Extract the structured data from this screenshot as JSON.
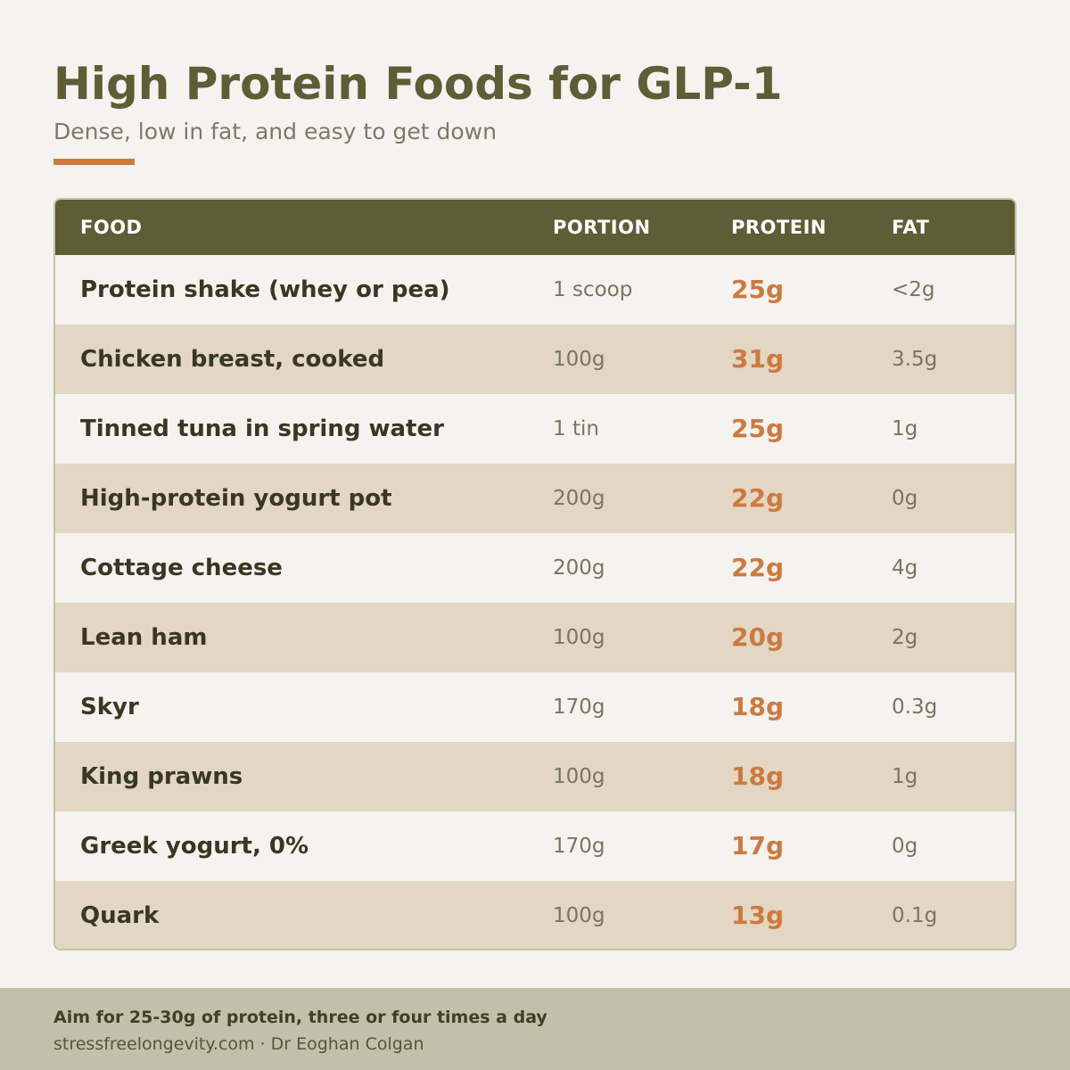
{
  "header": {
    "title": "High Protein Foods for GLP-1",
    "subtitle": "Dense, low in fat, and easy to get down"
  },
  "table": {
    "columns": {
      "food": "FOOD",
      "portion": "PORTION",
      "protein": "PROTEIN",
      "fat": "FAT"
    },
    "rows": [
      {
        "food": "Protein shake (whey or pea)",
        "portion": "1 scoop",
        "protein": "25g",
        "fat": "<2g"
      },
      {
        "food": "Chicken breast, cooked",
        "portion": "100g",
        "protein": "31g",
        "fat": "3.5g"
      },
      {
        "food": "Tinned tuna in spring water",
        "portion": "1 tin",
        "protein": "25g",
        "fat": "1g"
      },
      {
        "food": "High-protein yogurt pot",
        "portion": "200g",
        "protein": "22g",
        "fat": "0g"
      },
      {
        "food": "Cottage cheese",
        "portion": "200g",
        "protein": "22g",
        "fat": "4g"
      },
      {
        "food": "Lean ham",
        "portion": "100g",
        "protein": "20g",
        "fat": "2g"
      },
      {
        "food": "Skyr",
        "portion": "170g",
        "protein": "18g",
        "fat": "0.3g"
      },
      {
        "food": "King prawns",
        "portion": "100g",
        "protein": "18g",
        "fat": "1g"
      },
      {
        "food": "Greek yogurt, 0%",
        "portion": "170g",
        "protein": "17g",
        "fat": "0g"
      },
      {
        "food": "Quark",
        "portion": "100g",
        "protein": "13g",
        "fat": "0.1g"
      }
    ]
  },
  "footer": {
    "note": "Aim for 25-30g of protein, three or four times a day",
    "credit": "stressfreelongevity.com  ·  Dr Eoghan Colgan"
  },
  "colors": {
    "background": "#f4f3f0",
    "title": "#5d5d36",
    "accent": "#cc7a40",
    "header_row": "#5d5d36",
    "alt_row": "#e3d6c3",
    "footer_band": "#c0c1a8"
  }
}
